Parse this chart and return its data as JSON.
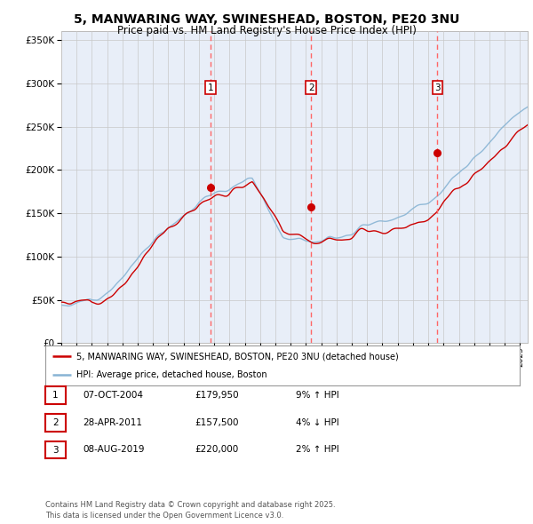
{
  "title": "5, MANWARING WAY, SWINESHEAD, BOSTON, PE20 3NU",
  "subtitle": "Price paid vs. HM Land Registry's House Price Index (HPI)",
  "ylabel_ticks": [
    "£0",
    "£50K",
    "£100K",
    "£150K",
    "£200K",
    "£250K",
    "£300K",
    "£350K"
  ],
  "ytick_values": [
    0,
    50000,
    100000,
    150000,
    200000,
    250000,
    300000,
    350000
  ],
  "ylim": [
    0,
    360000
  ],
  "xlim_start": 1995.0,
  "xlim_end": 2025.5,
  "sale_dates": [
    2004.77,
    2011.33,
    2019.6
  ],
  "sale_prices": [
    179950,
    157500,
    220000
  ],
  "sale_labels": [
    "1",
    "2",
    "3"
  ],
  "legend_label_red": "5, MANWARING WAY, SWINESHEAD, BOSTON, PE20 3NU (detached house)",
  "legend_label_blue": "HPI: Average price, detached house, Boston",
  "table_rows": [
    [
      "1",
      "07-OCT-2004",
      "£179,950",
      "9% ↑ HPI"
    ],
    [
      "2",
      "28-APR-2011",
      "£157,500",
      "4% ↓ HPI"
    ],
    [
      "3",
      "08-AUG-2019",
      "£220,000",
      "2% ↑ HPI"
    ]
  ],
  "footer": "Contains HM Land Registry data © Crown copyright and database right 2025.\nThis data is licensed under the Open Government Licence v3.0.",
  "red_color": "#cc0000",
  "blue_color": "#88b4d4",
  "blue_fill_color": "#d0e4f0",
  "background_color": "#e8eef8",
  "grid_color": "#c8c8c8",
  "dashed_line_color": "#ff6666",
  "title_fontsize": 10,
  "subtitle_fontsize": 8.5,
  "hpi_seed": 12,
  "red_seed": 77
}
